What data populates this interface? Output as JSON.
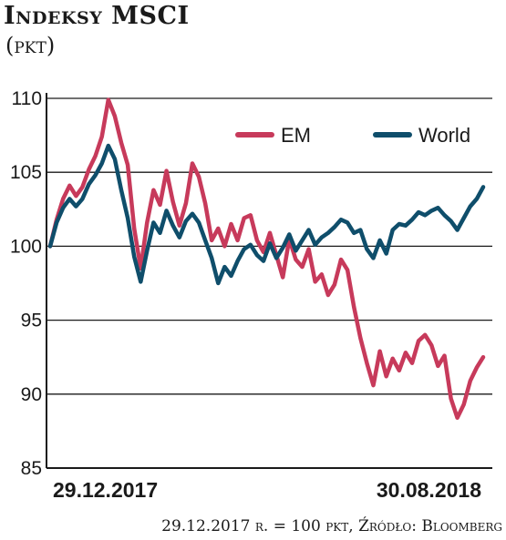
{
  "header": {
    "title": "Indeksy MSCI",
    "subtitle": "(pkt)"
  },
  "footnote": "29.12.2017 r. = 100 pkt, Źródło: Bloomberg",
  "colors": {
    "EM": "#c73a5b",
    "World": "#0f4e6b",
    "axis": "#1a1a1a",
    "grid": "#1a1a1a"
  },
  "chart_data": {
    "type": "line",
    "ylim": [
      85,
      110
    ],
    "yticks": [
      85,
      90,
      95,
      100,
      105,
      110
    ],
    "grid": "horizontal",
    "legend": "top-right",
    "x_tick_labels": [
      "29.12.2017",
      "30.08.2018"
    ],
    "x_start": "29.12.2017",
    "x_end": "30.08.2018",
    "series": [
      {
        "name": "EM",
        "values": [
          100,
          101.8,
          103.2,
          104.1,
          103.4,
          104.0,
          105.2,
          106.1,
          107.4,
          109.9,
          108.8,
          107.0,
          105.5,
          101.2,
          98.5,
          101.6,
          103.8,
          102.8,
          105.1,
          103.0,
          101.4,
          102.9,
          105.6,
          104.7,
          102.9,
          100.4,
          101.2,
          100.0,
          101.5,
          100.4,
          101.9,
          102.1,
          100.4,
          99.6,
          100.9,
          99.4,
          97.9,
          100.5,
          99.1,
          98.6,
          99.8,
          97.6,
          98.1,
          96.7,
          97.4,
          99.1,
          98.4,
          95.9,
          93.8,
          92.1,
          90.6,
          92.9,
          91.2,
          92.4,
          91.6,
          92.8,
          92.1,
          93.6,
          94.0,
          93.3,
          91.9,
          92.6,
          89.7,
          88.4,
          89.3,
          90.9,
          91.8,
          92.5
        ]
      },
      {
        "name": "World",
        "values": [
          100,
          101.6,
          102.6,
          103.2,
          102.7,
          103.2,
          104.2,
          104.8,
          105.6,
          106.8,
          105.9,
          103.8,
          101.9,
          99.3,
          97.6,
          99.7,
          101.6,
          100.9,
          102.4,
          101.4,
          100.6,
          101.7,
          102.2,
          101.6,
          100.4,
          99.2,
          97.5,
          98.6,
          98.0,
          99.0,
          99.8,
          100.1,
          99.4,
          99.0,
          100.2,
          99.2,
          99.9,
          100.8,
          99.7,
          100.4,
          101.1,
          100.1,
          100.6,
          100.9,
          101.3,
          101.8,
          101.6,
          100.9,
          101.1,
          99.8,
          99.2,
          100.4,
          99.5,
          101.1,
          101.5,
          101.4,
          101.8,
          102.3,
          102.1,
          102.4,
          102.6,
          102.1,
          101.7,
          101.1,
          101.9,
          102.7,
          103.2,
          104.0
        ]
      }
    ]
  }
}
